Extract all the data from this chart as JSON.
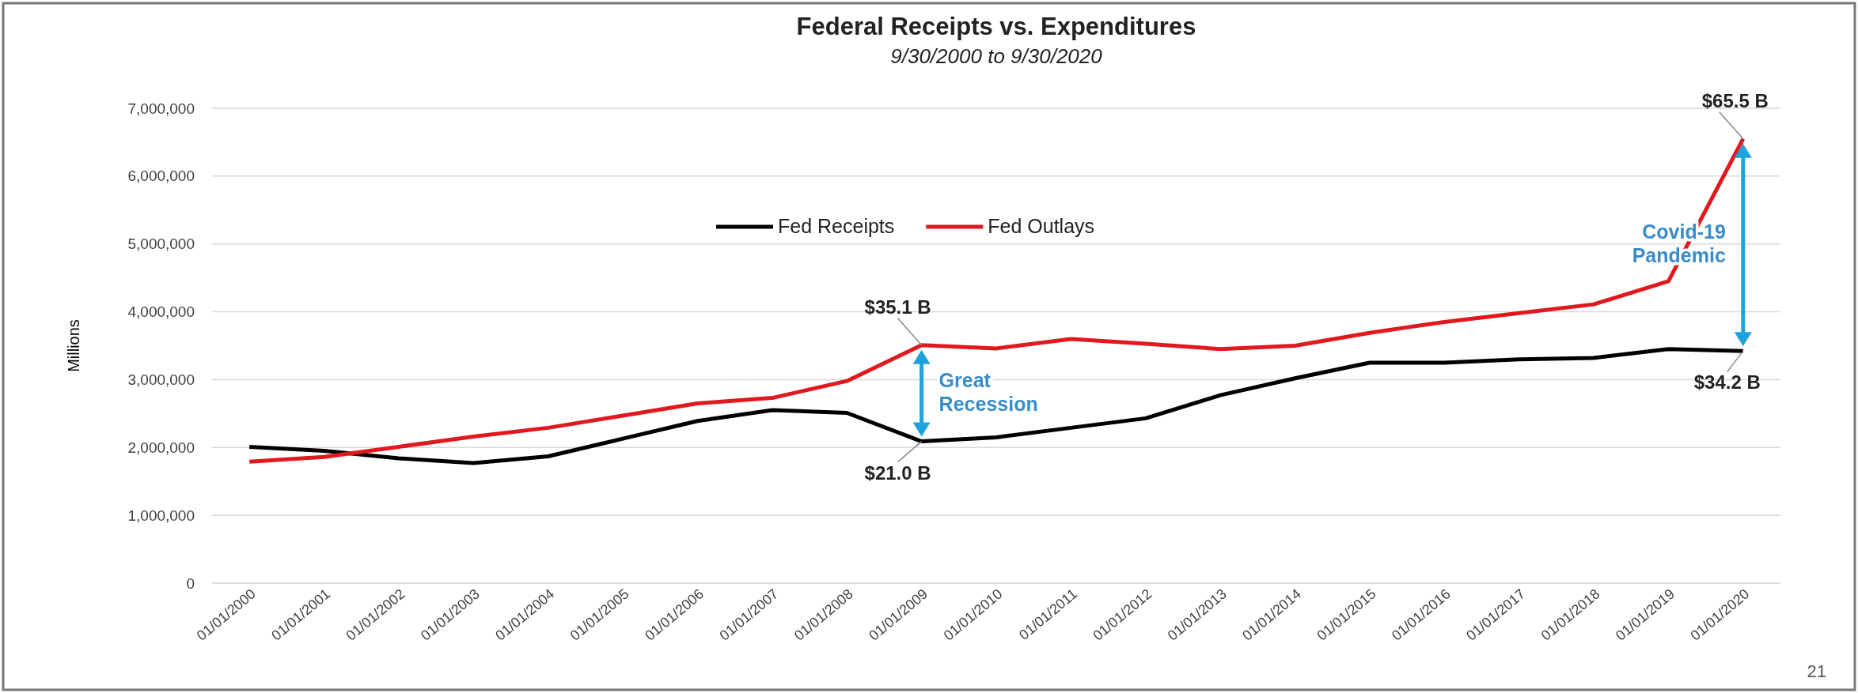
{
  "chart_data": {
    "type": "line",
    "title": "Federal Receipts vs. Expenditures",
    "subtitle": "9/30/2000 to 9/30/2020",
    "ylabel": "Millions",
    "categories": [
      "01/01/2000",
      "01/01/2001",
      "01/01/2002",
      "01/01/2003",
      "01/01/2004",
      "01/01/2005",
      "01/01/2006",
      "01/01/2007",
      "01/01/2008",
      "01/01/2009",
      "01/01/2010",
      "01/01/2011",
      "01/01/2012",
      "01/01/2013",
      "01/01/2014",
      "01/01/2015",
      "01/01/2016",
      "01/01/2017",
      "01/01/2018",
      "01/01/2019",
      "01/01/2020"
    ],
    "series": [
      {
        "name": "Fed Receipts",
        "color": "#000000",
        "values": [
          2010000,
          1950000,
          1840000,
          1770000,
          1870000,
          2130000,
          2390000,
          2550000,
          2510000,
          2090000,
          2150000,
          2290000,
          2430000,
          2770000,
          3020000,
          3250000,
          3250000,
          3300000,
          3320000,
          3450000,
          3420000
        ]
      },
      {
        "name": "Fed Outlays",
        "color": "#e0191e",
        "values": [
          1790000,
          1860000,
          2010000,
          2160000,
          2290000,
          2470000,
          2650000,
          2730000,
          2980000,
          3510000,
          3460000,
          3600000,
          3530000,
          3450000,
          3500000,
          3690000,
          3850000,
          3980000,
          4110000,
          4450000,
          6550000
        ]
      }
    ],
    "ylim": [
      0,
      7000000
    ],
    "yticks": [
      0,
      {
        "value": 1000000,
        "label": "1,000,000"
      },
      {
        "value": 2000000,
        "label": "2,000,000"
      },
      {
        "value": 3000000,
        "label": "3,000,000"
      },
      {
        "value": 4000000,
        "label": "4,000,000"
      },
      {
        "value": 5000000,
        "label": "5,000,000"
      },
      {
        "value": 6000000,
        "label": "6,000,000"
      },
      {
        "value": 7000000,
        "label": "7,000,000"
      }
    ],
    "grid": "y",
    "legend": "top",
    "marker": "none",
    "line_style": "solid",
    "annotations": [
      {
        "text": "$35.1 B",
        "x": "01/01/2009",
        "y": 3510000
      },
      {
        "text": "$21.0 B",
        "x": "01/01/2009",
        "y": 2090000
      },
      "$65.5 B",
      "$34.2 B",
      "Great Recession",
      "Covid-19 Pandemic",
      "21"
    ]
  }
}
